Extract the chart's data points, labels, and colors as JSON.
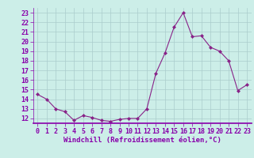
{
  "x": [
    0,
    1,
    2,
    3,
    4,
    5,
    6,
    7,
    8,
    9,
    10,
    11,
    12,
    13,
    14,
    15,
    16,
    17,
    18,
    19,
    20,
    21,
    22,
    23
  ],
  "y": [
    14.5,
    14.0,
    13.0,
    12.7,
    11.8,
    12.3,
    12.1,
    11.8,
    11.7,
    11.9,
    12.0,
    12.0,
    13.0,
    16.7,
    18.8,
    21.5,
    23.0,
    20.5,
    20.6,
    19.4,
    19.0,
    18.0,
    14.9,
    15.5
  ],
  "line_color": "#882288",
  "marker": "D",
  "marker_size": 2.0,
  "bg_color": "#cceee8",
  "grid_color": "#aacccc",
  "xlabel": "Windchill (Refroidissement éolien,°C)",
  "xlabel_fontsize": 6.5,
  "tick_fontsize": 6.0,
  "ylim": [
    11.5,
    23.5
  ],
  "yticks": [
    12,
    13,
    14,
    15,
    16,
    17,
    18,
    19,
    20,
    21,
    22,
    23
  ],
  "xlim": [
    -0.5,
    23.5
  ],
  "xticks": [
    0,
    1,
    2,
    3,
    4,
    5,
    6,
    7,
    8,
    9,
    10,
    11,
    12,
    13,
    14,
    15,
    16,
    17,
    18,
    19,
    20,
    21,
    22,
    23
  ],
  "spine_color": "#8800aa",
  "fig_width": 3.2,
  "fig_height": 2.0,
  "dpi": 100
}
